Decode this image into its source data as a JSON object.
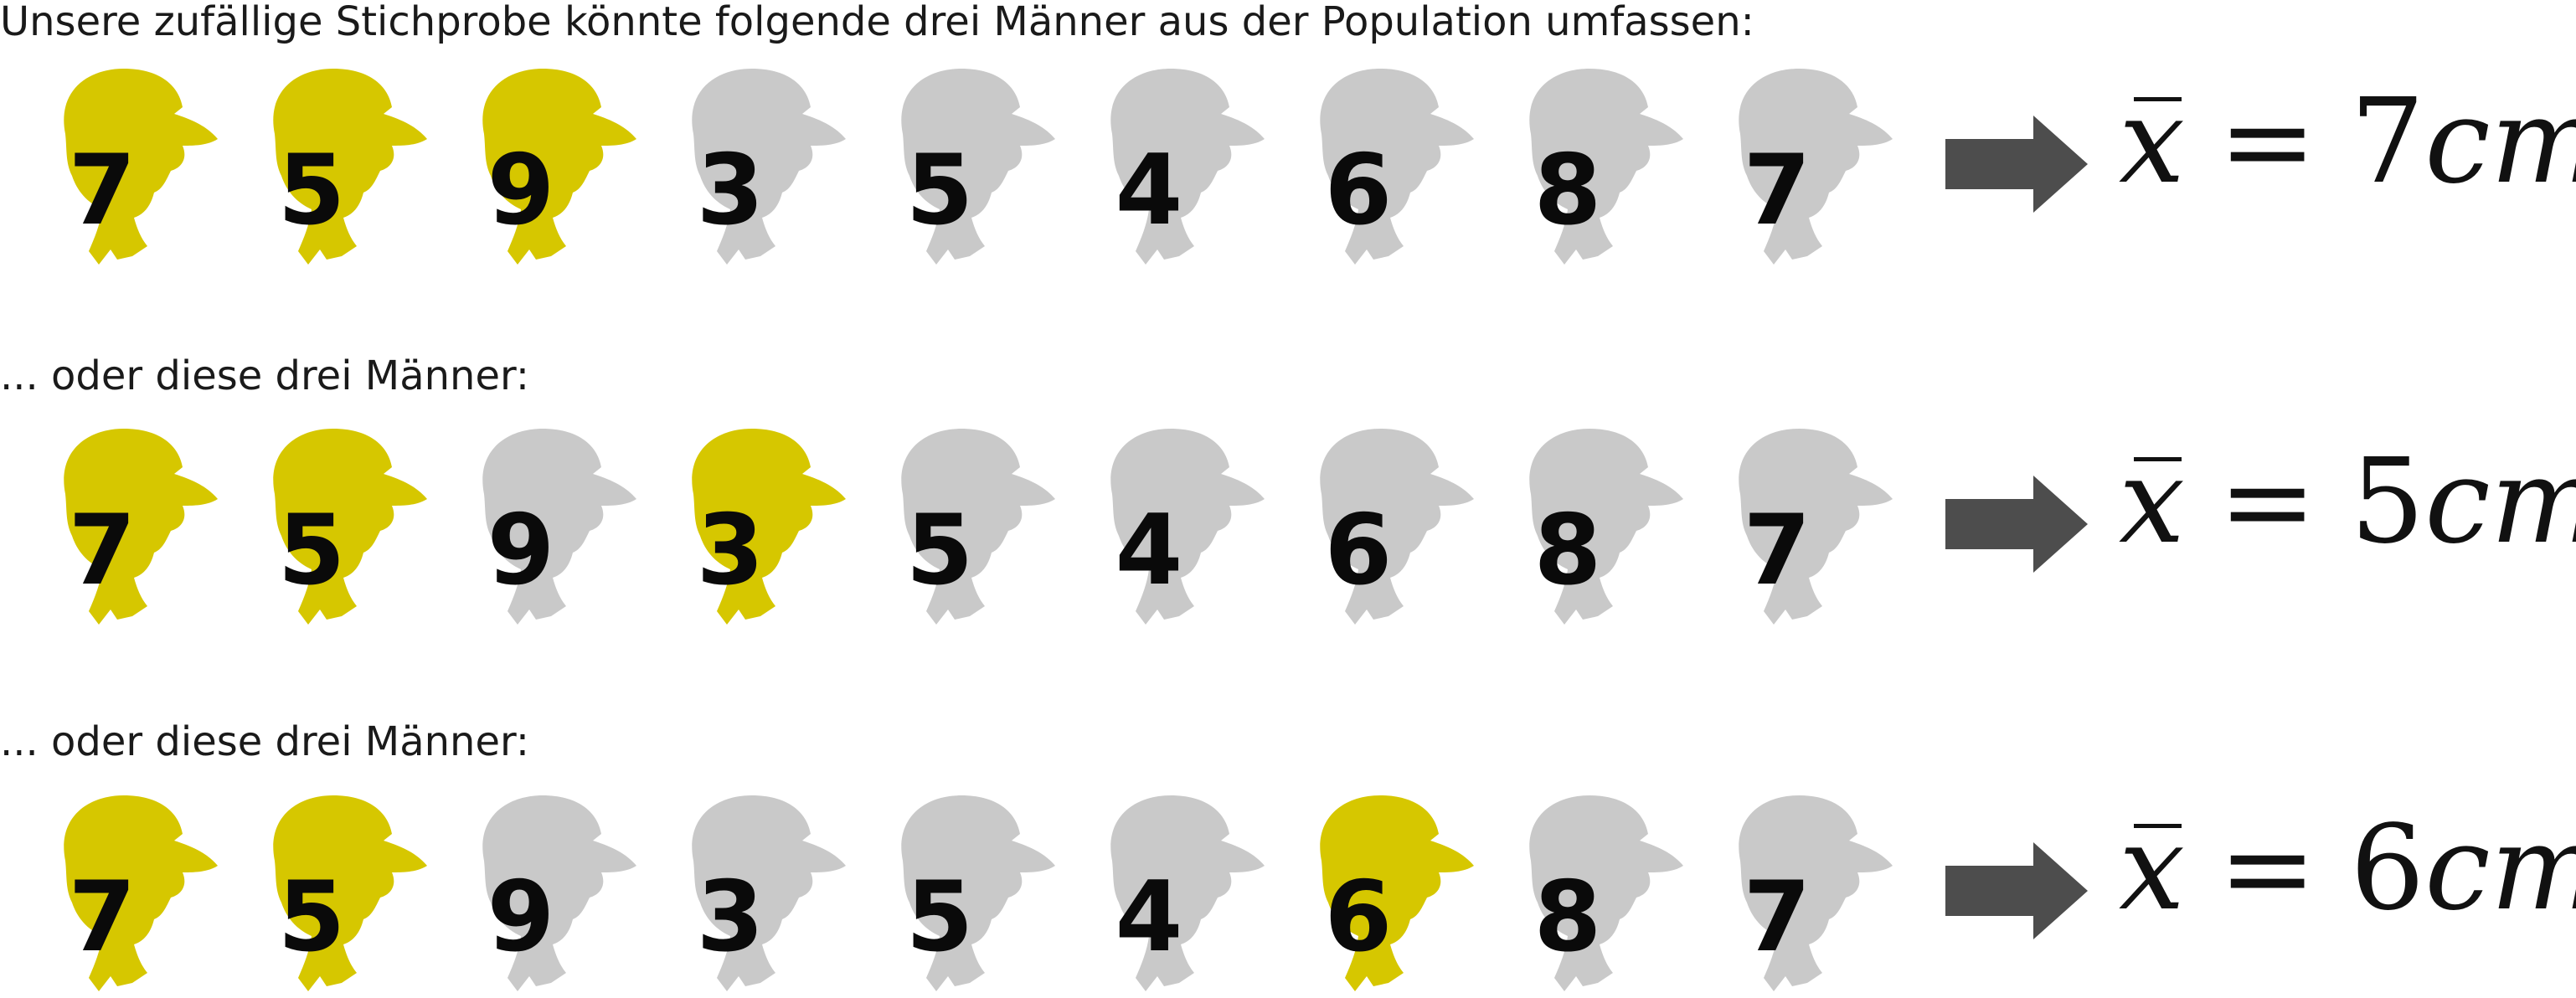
{
  "colors": {
    "selected": "#d6c700",
    "unselected": "#c9c9c9",
    "arrow": "#4d4d4d",
    "text": "#0a0a0a"
  },
  "icons": {
    "person": "head-profile-silhouette-icon",
    "arrow": "right-arrow-icon"
  },
  "captions": [
    "Unsere zufällige Stichprobe könnte folgende drei Männer aus der Population umfassen:",
    "... oder diese drei Männer:",
    "... oder diese drei Männer:"
  ],
  "population_values": [
    "7",
    "5",
    "9",
    "3",
    "5",
    "4",
    "6",
    "8",
    "7"
  ],
  "samples": [
    {
      "selected": [
        true,
        true,
        true,
        false,
        false,
        false,
        false,
        false,
        false
      ],
      "formula": {
        "variable": "x",
        "equals": "=",
        "value": "7",
        "unit": "cm"
      }
    },
    {
      "selected": [
        true,
        true,
        false,
        true,
        false,
        false,
        false,
        false,
        false
      ],
      "formula": {
        "variable": "x",
        "equals": "=",
        "value": "5",
        "unit": "cm"
      }
    },
    {
      "selected": [
        true,
        true,
        false,
        false,
        false,
        false,
        true,
        false,
        false
      ],
      "formula": {
        "variable": "x",
        "equals": "=",
        "value": "6",
        "unit": "cm"
      }
    }
  ]
}
